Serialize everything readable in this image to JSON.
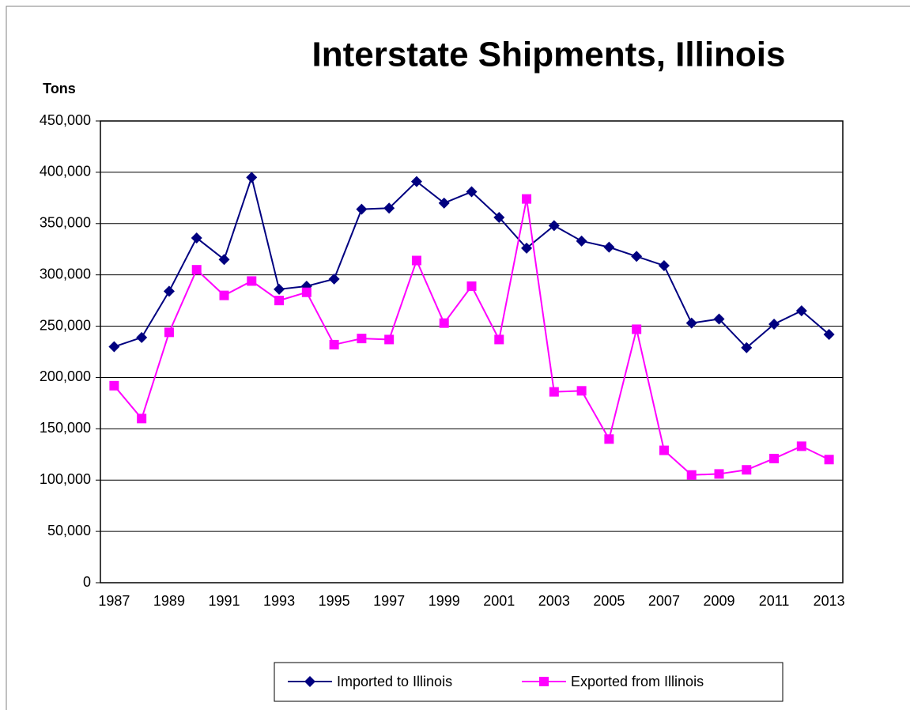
{
  "chart_data": {
    "type": "line",
    "title": "Interstate Shipments, Illinois",
    "y_label": "Tons",
    "x": [
      1987,
      1988,
      1989,
      1990,
      1991,
      1992,
      1993,
      1994,
      1995,
      1996,
      1997,
      1998,
      1999,
      2000,
      2001,
      2002,
      2003,
      2004,
      2005,
      2006,
      2007,
      2008,
      2009,
      2010,
      2011,
      2012,
      2013
    ],
    "xlim": [
      1986.5,
      2013.5
    ],
    "xticks": [
      1987,
      1989,
      1991,
      1993,
      1995,
      1997,
      1999,
      2001,
      2003,
      2005,
      2007,
      2009,
      2011,
      2013
    ],
    "ylim": [
      0,
      450000
    ],
    "yticks": [
      0,
      {
        "value": 50000,
        "label": "50,000"
      },
      {
        "value": 100000,
        "label": "100,000"
      },
      {
        "value": 150000,
        "label": "150,000"
      },
      {
        "value": 200000,
        "label": "200,000"
      },
      {
        "value": 250000,
        "label": "250,000"
      },
      {
        "value": 300000,
        "label": "300,000"
      },
      {
        "value": 350000,
        "label": "350,000"
      },
      {
        "value": 400000,
        "label": "400,000"
      },
      {
        "value": 450000,
        "label": "450,000"
      }
    ],
    "grid": true,
    "legend": "bottom",
    "series": [
      {
        "name": "Imported to Illinois",
        "color": "#000080",
        "marker": "diamond",
        "values": [
          230000,
          239000,
          284000,
          336000,
          315000,
          395000,
          286000,
          289000,
          296000,
          364000,
          365000,
          391000,
          370000,
          381000,
          356000,
          326000,
          348000,
          333000,
          327000,
          318000,
          309000,
          253000,
          257000,
          229000,
          252000,
          265000,
          242000
        ]
      },
      {
        "name": "Exported from Illinois",
        "color": "#ff00ff",
        "marker": "square",
        "values": [
          192000,
          160000,
          244000,
          305000,
          280000,
          294000,
          275000,
          283000,
          232000,
          238000,
          237000,
          314000,
          253000,
          289000,
          237000,
          374000,
          186000,
          187000,
          140000,
          247000,
          129000,
          105000,
          106000,
          110000,
          121000,
          133000,
          120000
        ]
      }
    ]
  }
}
